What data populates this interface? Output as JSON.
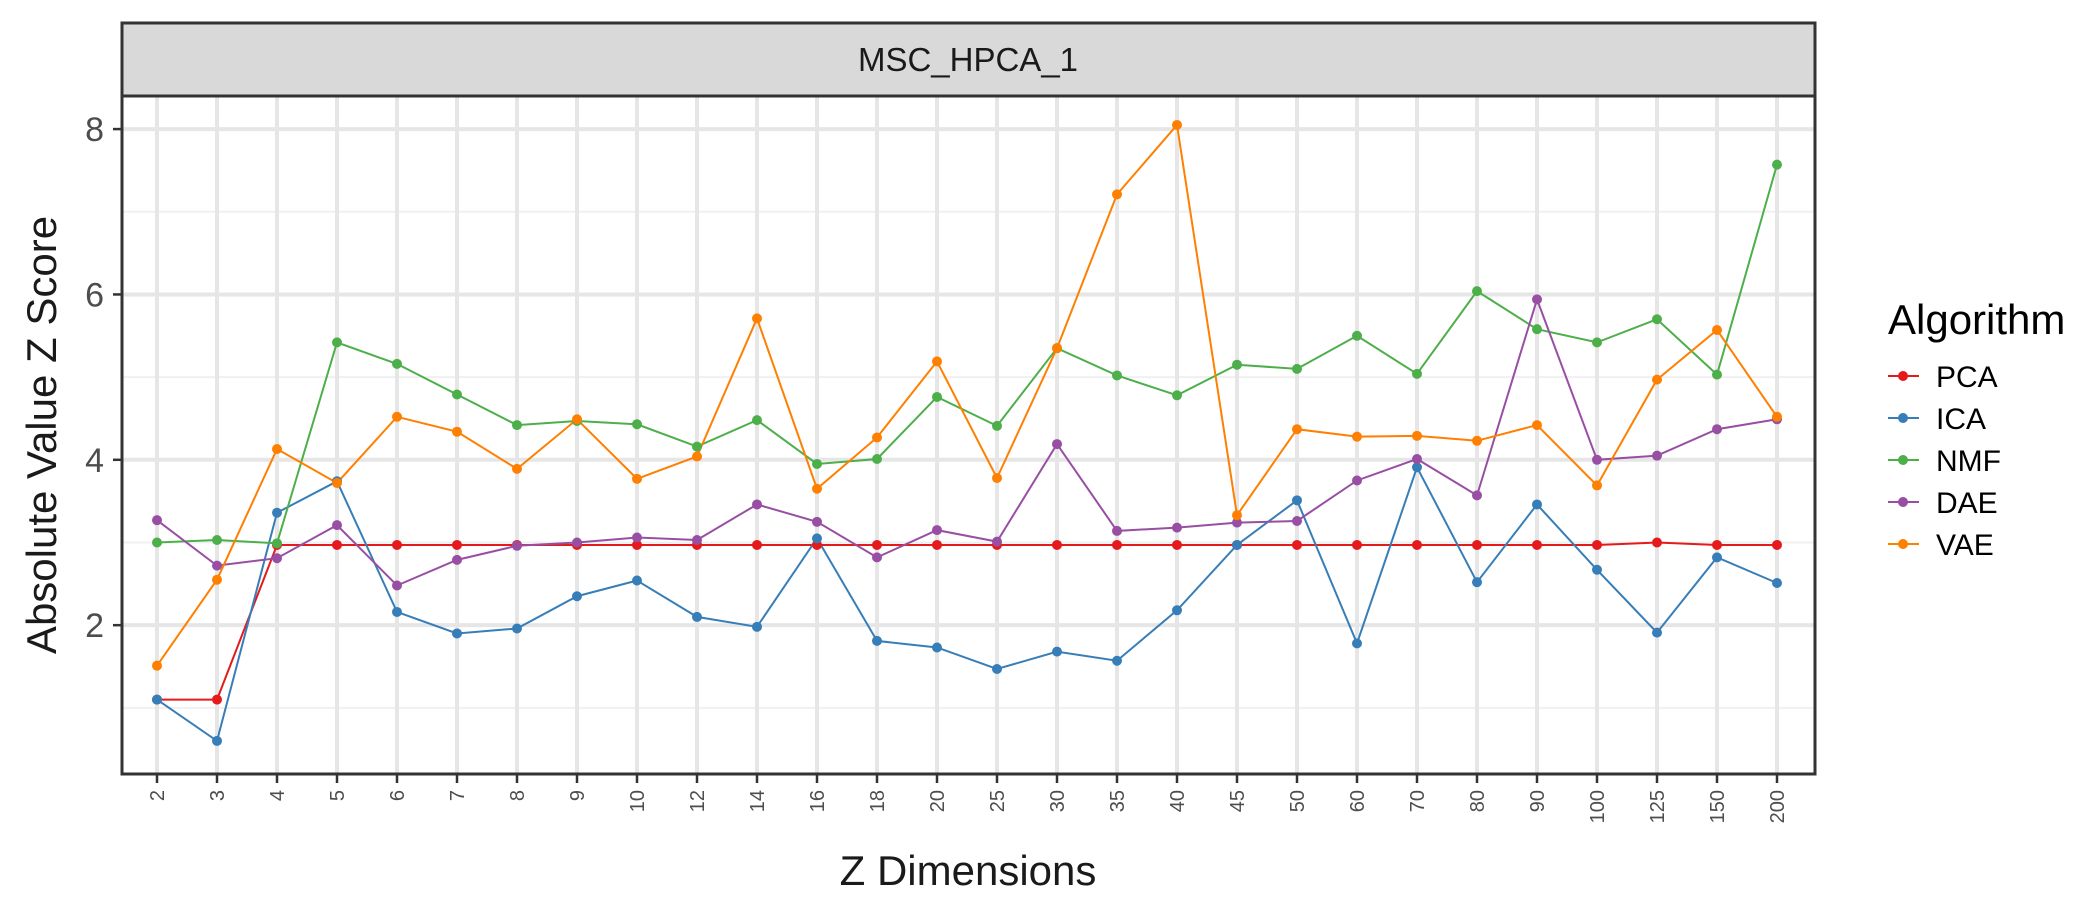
{
  "chart_data": {
    "type": "line",
    "facet_title": "MSC_HPCA_1",
    "xlabel": "Z Dimensions",
    "ylabel": "Absolute Value Z Score",
    "categories": [
      "2",
      "3",
      "4",
      "5",
      "6",
      "7",
      "8",
      "9",
      "10",
      "12",
      "14",
      "16",
      "18",
      "20",
      "25",
      "30",
      "35",
      "40",
      "45",
      "50",
      "60",
      "70",
      "80",
      "90",
      "100",
      "125",
      "150",
      "200"
    ],
    "ylim": [
      0.2,
      8.4
    ],
    "yticks": [
      2,
      4,
      6,
      8
    ],
    "grid": true,
    "legend": {
      "title": "Algorithm",
      "position": "right"
    },
    "series": [
      {
        "name": "PCA",
        "color": "#e41a1c",
        "values": [
          1.1,
          1.1,
          2.97,
          2.97,
          2.97,
          2.97,
          2.97,
          2.97,
          2.97,
          2.97,
          2.97,
          2.97,
          2.97,
          2.97,
          2.97,
          2.97,
          2.97,
          2.97,
          2.97,
          2.97,
          2.97,
          2.97,
          2.97,
          2.97,
          2.97,
          3.0,
          2.97,
          2.97
        ]
      },
      {
        "name": "ICA",
        "color": "#377eb8",
        "values": [
          1.1,
          0.6,
          3.36,
          3.74,
          2.16,
          1.9,
          1.96,
          2.35,
          2.54,
          2.1,
          1.98,
          3.05,
          1.81,
          1.73,
          1.47,
          1.68,
          1.57,
          2.18,
          2.97,
          3.51,
          1.78,
          3.91,
          2.52,
          3.46,
          2.67,
          1.91,
          2.82,
          2.51
        ]
      },
      {
        "name": "NMF",
        "color": "#4daf4a",
        "values": [
          3.0,
          3.03,
          2.99,
          5.42,
          5.16,
          4.79,
          4.42,
          4.47,
          4.43,
          4.16,
          4.48,
          3.95,
          4.01,
          4.76,
          4.41,
          5.35,
          5.02,
          4.78,
          5.15,
          5.1,
          5.5,
          5.04,
          6.04,
          5.58,
          5.42,
          5.7,
          5.03,
          7.57
        ]
      },
      {
        "name": "DAE",
        "color": "#984ea3",
        "values": [
          3.27,
          2.72,
          2.81,
          3.21,
          2.48,
          2.79,
          2.96,
          3.0,
          3.06,
          3.03,
          3.46,
          3.25,
          2.82,
          3.15,
          3.01,
          4.19,
          3.14,
          3.18,
          3.24,
          3.26,
          3.75,
          4.01,
          3.57,
          5.94,
          4.0,
          4.05,
          4.37,
          4.49
        ]
      },
      {
        "name": "VAE",
        "color": "#ff7f00",
        "values": [
          1.51,
          2.55,
          4.13,
          3.72,
          4.52,
          4.34,
          3.89,
          4.49,
          3.77,
          4.04,
          5.71,
          3.65,
          4.27,
          5.19,
          3.78,
          5.35,
          7.21,
          8.05,
          3.33,
          4.37,
          4.28,
          4.29,
          4.23,
          4.42,
          3.69,
          4.97,
          5.57,
          4.52
        ]
      }
    ]
  }
}
